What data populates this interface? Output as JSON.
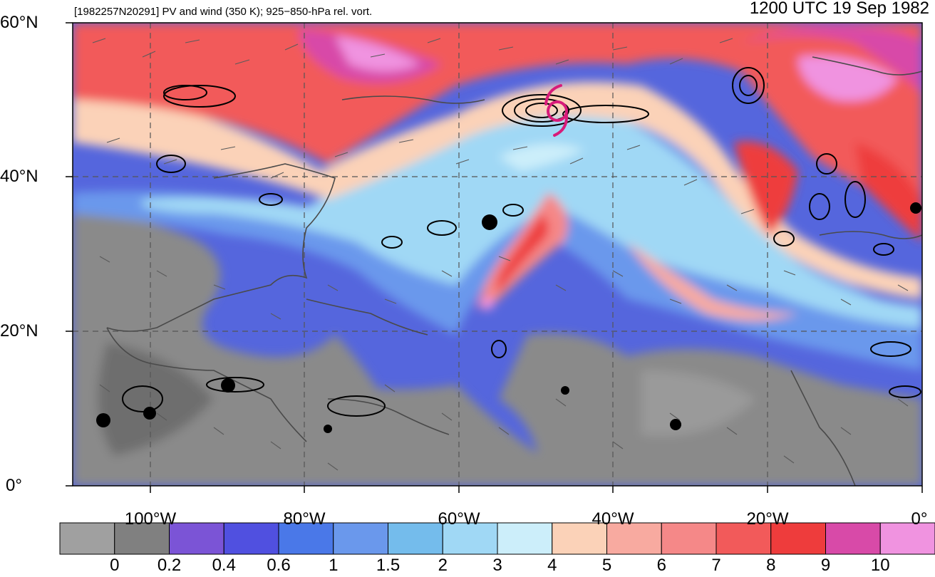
{
  "title": {
    "left": "[1982257N20291] PV and wind (350 K); 925−850-hPa rel. vort.",
    "right": "1200 UTC 19 Sep 1982"
  },
  "axes": {
    "lat_labels": [
      "60°N",
      "40°N",
      "20°N",
      "0°"
    ],
    "lon_labels": [
      "100°W",
      "80°W",
      "60°W",
      "40°W",
      "20°W",
      "0°"
    ]
  },
  "colorbar": {
    "labels": [
      "0",
      "0.2",
      "0.4",
      "0.6",
      "1",
      "1.5",
      "2",
      "3",
      "4",
      "5",
      "6",
      "7",
      "8",
      "9",
      "10"
    ],
    "colors": [
      "#a0a0a0",
      "#808080",
      "#7b54d6",
      "#5050e0",
      "#4a78e8",
      "#6a98ec",
      "#74bcec",
      "#a0d8f5",
      "#cceefa",
      "#fbd2b8",
      "#f8aaa0",
      "#f58888",
      "#f25a5a",
      "#ee3c3c",
      "#d84aa8",
      "#f093e0"
    ]
  },
  "map": {
    "extent": {
      "lon_min": -110,
      "lon_max": 0,
      "lat_min": 0,
      "lat_max": 60
    },
    "storm_marker_color": "#d81b7a"
  }
}
